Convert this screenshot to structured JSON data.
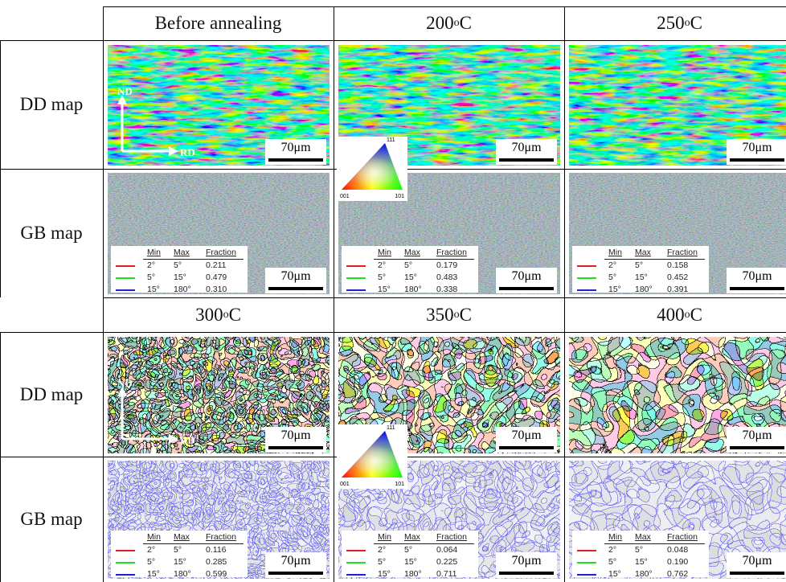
{
  "blocks": [
    {
      "headers": [
        {
          "text": "Before annealing"
        },
        {
          "num": "200",
          "sup": "o",
          "unit": "C"
        },
        {
          "num": "250",
          "sup": "o",
          "unit": "C"
        }
      ],
      "row_labels": [
        "DD map",
        "GB map"
      ],
      "axes": {
        "nd": "ND",
        "rd": "RD"
      },
      "ipf": {
        "top": "111",
        "left": "001",
        "right": "101"
      },
      "panels": [
        {
          "dd_scale": "70μm",
          "gb_scale": "70μm",
          "legend": {
            "header": [
              "Min",
              "Max",
              "Fraction"
            ],
            "rows": [
              [
                "2°",
                "5°",
                "0.211"
              ],
              [
                "5°",
                "15°",
                "0.479"
              ],
              [
                "15°",
                "180°",
                "0.310"
              ]
            ]
          }
        },
        {
          "dd_scale": "70μm",
          "gb_scale": "70μm",
          "legend": {
            "header": [
              "Min",
              "Max",
              "Fraction"
            ],
            "rows": [
              [
                "2°",
                "5°",
                "0.179"
              ],
              [
                "5°",
                "15°",
                "0.483"
              ],
              [
                "15°",
                "180°",
                "0.338"
              ]
            ]
          }
        },
        {
          "dd_scale": "70μm",
          "gb_scale": "70μm",
          "legend": {
            "header": [
              "Min",
              "Max",
              "Fraction"
            ],
            "rows": [
              [
                "2°",
                "5°",
                "0.158"
              ],
              [
                "5°",
                "15°",
                "0.452"
              ],
              [
                "15°",
                "180°",
                "0.391"
              ]
            ]
          }
        }
      ]
    },
    {
      "headers": [
        {
          "num": "300",
          "sup": "o",
          "unit": "C"
        },
        {
          "num": "350",
          "sup": "o",
          "unit": "C"
        },
        {
          "num": "400",
          "sup": "o",
          "unit": "C"
        }
      ],
      "row_labels": [
        "DD map",
        "GB map"
      ],
      "axes": {
        "nd": "ND",
        "rd": "RD"
      },
      "ipf": {
        "top": "111",
        "left": "001",
        "right": "101"
      },
      "panels": [
        {
          "dd_scale": "70μm",
          "gb_scale": "70μm",
          "legend": {
            "header": [
              "Min",
              "Max",
              "Fraction"
            ],
            "rows": [
              [
                "2°",
                "5°",
                "0.116"
              ],
              [
                "5°",
                "15°",
                "0.285"
              ],
              [
                "15°",
                "180°",
                "0.599"
              ]
            ]
          }
        },
        {
          "dd_scale": "70μm",
          "gb_scale": "70μm",
          "legend": {
            "header": [
              "Min",
              "Max",
              "Fraction"
            ],
            "rows": [
              [
                "2°",
                "5°",
                "0.064"
              ],
              [
                "5°",
                "15°",
                "0.225"
              ],
              [
                "15°",
                "180°",
                "0.711"
              ]
            ]
          }
        },
        {
          "dd_scale": "70μm",
          "gb_scale": "70μm",
          "legend": {
            "header": [
              "Min",
              "Max",
              "Fraction"
            ],
            "rows": [
              [
                "2°",
                "5°",
                "0.048"
              ],
              [
                "5°",
                "15°",
                "0.190"
              ],
              [
                "15°",
                "180°",
                "0.762"
              ]
            ]
          }
        }
      ]
    }
  ]
}
